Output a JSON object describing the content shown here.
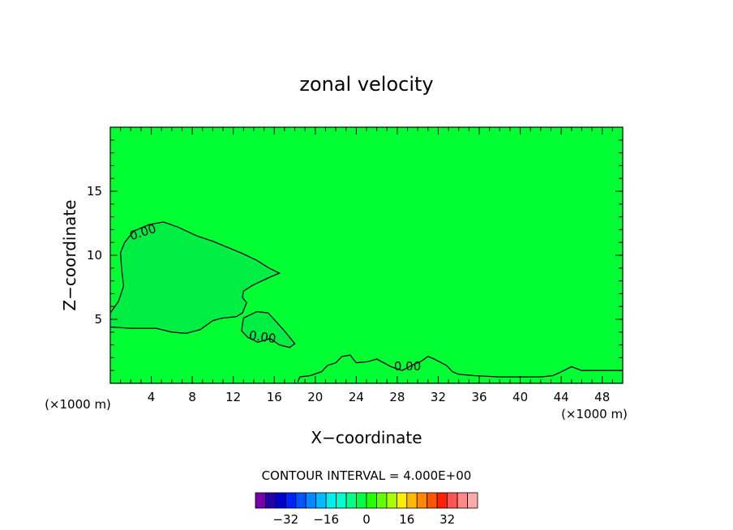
{
  "chart_data": {
    "type": "heatmap",
    "title": "zonal velocity",
    "xlabel": "X−coordinate",
    "ylabel": "Z−coordinate",
    "x_unit_left": "(×1000 m)",
    "x_unit_right": "(×1000 m)",
    "xlim": [
      0,
      50
    ],
    "ylim": [
      0,
      20
    ],
    "xticks": [
      4,
      8,
      12,
      16,
      20,
      24,
      28,
      32,
      36,
      40,
      44,
      48
    ],
    "xtick_labels": [
      "4",
      "8",
      "12",
      "16",
      "20",
      "24",
      "28",
      "32",
      "36",
      "40",
      "44",
      "48"
    ],
    "yticks": [
      5,
      10,
      15
    ],
    "ytick_labels": [
      "5",
      "10",
      "15"
    ],
    "contour_interval_label": "CONTOUR INTERVAL = 4.000E+00",
    "contour_interval": 4.0,
    "field_background_color": "#00ff33",
    "negative_region_color": "#00ee44",
    "contours": [
      {
        "level": 0.0,
        "label": "0.00",
        "label_at": [
          3.3,
          11.5
        ],
        "points": [
          [
            0,
            5.5
          ],
          [
            0.8,
            6.4
          ],
          [
            1.3,
            7.6
          ],
          [
            1.1,
            9.0
          ],
          [
            1.0,
            10.2
          ],
          [
            1.4,
            11.0
          ],
          [
            2.3,
            11.9
          ],
          [
            3.8,
            12.4
          ],
          [
            5.2,
            12.6
          ],
          [
            6.6,
            12.2
          ],
          [
            8.5,
            11.5
          ],
          [
            10.0,
            11.1
          ],
          [
            11.5,
            10.6
          ],
          [
            13.0,
            10.1
          ],
          [
            14.3,
            9.6
          ],
          [
            15.5,
            9.0
          ],
          [
            16.5,
            8.6
          ],
          [
            15.6,
            8.3
          ],
          [
            14.0,
            7.7
          ],
          [
            13.0,
            7.2
          ],
          [
            12.9,
            6.7
          ],
          [
            13.3,
            6.3
          ],
          [
            12.9,
            5.5
          ],
          [
            12.3,
            5.2
          ],
          [
            11.0,
            5.1
          ],
          [
            10.0,
            4.9
          ],
          [
            8.8,
            4.2
          ],
          [
            7.4,
            3.9
          ],
          [
            6.0,
            4.0
          ],
          [
            4.5,
            4.3
          ],
          [
            2.0,
            4.3
          ],
          [
            0,
            4.4
          ]
        ]
      },
      {
        "level": 0.0,
        "label": "0.00",
        "label_at": [
          14.8,
          3.3
        ],
        "points": [
          [
            13.0,
            5.1
          ],
          [
            14.3,
            5.6
          ],
          [
            15.4,
            5.5
          ],
          [
            16.2,
            4.8
          ],
          [
            17.1,
            4.0
          ],
          [
            18.0,
            3.1
          ],
          [
            17.5,
            2.8
          ],
          [
            16.5,
            3.0
          ],
          [
            15.6,
            3.5
          ],
          [
            14.4,
            3.2
          ],
          [
            13.4,
            3.6
          ],
          [
            12.8,
            4.1
          ],
          [
            13.0,
            5.1
          ]
        ]
      },
      {
        "level": 0.0,
        "label": "0.00",
        "label_at": [
          29.0,
          1.0
        ],
        "points": [
          [
            18.3,
            0.1
          ],
          [
            18.5,
            0.5
          ],
          [
            19.5,
            0.6
          ],
          [
            20.6,
            0.9
          ],
          [
            21.2,
            1.4
          ],
          [
            22.0,
            1.6
          ],
          [
            22.6,
            2.1
          ],
          [
            23.4,
            2.2
          ],
          [
            24.0,
            1.6
          ],
          [
            25.2,
            1.7
          ],
          [
            26.0,
            1.9
          ],
          [
            27.4,
            1.3
          ],
          [
            28.5,
            1.0
          ],
          [
            29.4,
            1.4
          ],
          [
            30.3,
            1.7
          ],
          [
            31.0,
            2.1
          ],
          [
            31.6,
            1.9
          ],
          [
            32.8,
            1.4
          ],
          [
            33.4,
            0.9
          ],
          [
            34.0,
            0.7
          ],
          [
            35.5,
            0.6
          ],
          [
            38.0,
            0.5
          ],
          [
            42.0,
            0.5
          ],
          [
            43.2,
            0.6
          ],
          [
            44.0,
            0.9
          ],
          [
            45.0,
            1.3
          ],
          [
            46.0,
            1.0
          ],
          [
            48.0,
            1.0
          ],
          [
            50.0,
            1.0
          ]
        ]
      }
    ],
    "colorbar": {
      "colors": [
        "#7700aa",
        "#2200aa",
        "#0000cc",
        "#0022ff",
        "#0055ff",
        "#0088ff",
        "#00bbff",
        "#00eeee",
        "#00ffcc",
        "#00ff88",
        "#00ff44",
        "#22ff00",
        "#66ff00",
        "#aaff00",
        "#ffee00",
        "#ffbb00",
        "#ff8800",
        "#ff5500",
        "#ff2200",
        "#ff5555",
        "#ff8888",
        "#ffaaaa"
      ],
      "tick_labels": [
        "−32",
        "−16",
        "0",
        "16",
        "32"
      ],
      "tick_values": [
        -32,
        -16,
        0,
        16,
        32
      ]
    }
  }
}
